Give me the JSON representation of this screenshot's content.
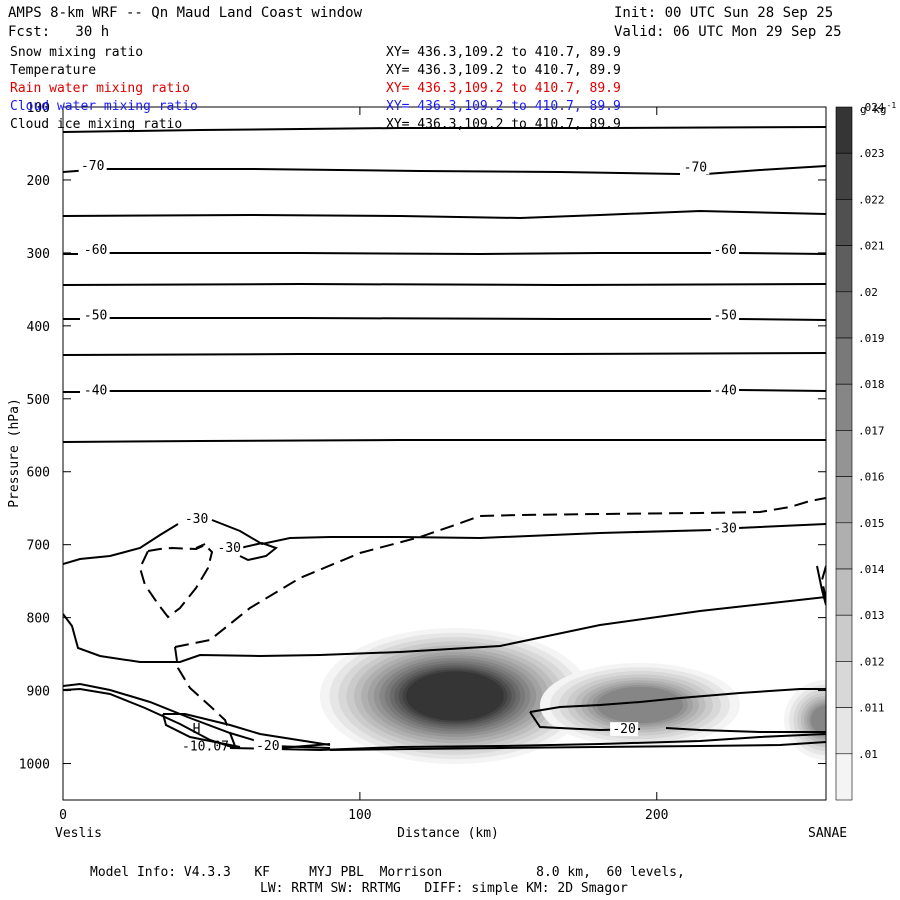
{
  "header": {
    "title": "AMPS 8-km WRF -- Qn Maud Land Coast window",
    "init": "Init: 00 UTC Sun 28 Sep 25",
    "forecast": "Fcst:   30 h",
    "valid": "Valid: 06 UTC Mon 29 Sep 25"
  },
  "legend": [
    {
      "name": "Snow mixing ratio",
      "xy": "XY= 436.3,109.2 to 410.7, 89.9",
      "color": "#000000"
    },
    {
      "name": "Temperature",
      "xy": "XY= 436.3,109.2 to 410.7, 89.9",
      "color": "#000000"
    },
    {
      "name": "Rain water mixing ratio",
      "xy": "XY= 436.3,109.2 to 410.7, 89.9",
      "color": "#e00000"
    },
    {
      "name": "Cloud water mixing ratio",
      "xy": "XY= 436.3,109.2 to 410.7, 89.9",
      "color": "#1a1aff"
    },
    {
      "name": "Cloud ice mixing ratio",
      "xy": "XY= 436.3,109.2 to 410.7, 89.9",
      "color": "#000000"
    }
  ],
  "footer": {
    "line1": "Model Info: V4.3.3   KF     MYJ PBL  Morrison            8.0 km,  60 levels,",
    "line2": "LW: RRTM SW: RRTMG   DIFF: simple KM: 2D Smagor"
  },
  "chart_data": {
    "type": "contour",
    "xlabel": "Distance (km)",
    "ylabel": "Pressure (hPa)",
    "xlim": [
      0,
      257
    ],
    "ylim": [
      1050,
      100
    ],
    "x_ticks": [
      0,
      100,
      200
    ],
    "y_ticks": [
      100,
      200,
      300,
      400,
      500,
      600,
      700,
      800,
      900,
      1000
    ],
    "x_endpoints": {
      "left": "Veslis",
      "right": "SANAE"
    },
    "colorbar": {
      "unit": "g kg",
      "unit_superscript": "-1",
      "levels": [
        0.01,
        0.011,
        0.012,
        0.013,
        0.014,
        0.015,
        0.016,
        0.017,
        0.018,
        0.019,
        0.02,
        0.021,
        0.022,
        0.023,
        0.024
      ],
      "labels": [
        ".01",
        ".011",
        ".012",
        ".013",
        ".014",
        ".015",
        ".016",
        ".017",
        ".018",
        ".019",
        ".02",
        ".021",
        ".022",
        ".023",
        ".024"
      ],
      "colors": [
        "#f4f4f4",
        "#e6e6e6",
        "#d8d8d8",
        "#cbcbcb",
        "#bdbdbd",
        "#afafaf",
        "#a2a2a2",
        "#949494",
        "#868686",
        "#797979",
        "#6b6b6b",
        "#5e5e5e",
        "#505050",
        "#424242",
        "#353535"
      ]
    },
    "temperature_labels": [
      {
        "text": "-70",
        "x": 10,
        "p": 185
      },
      {
        "text": "-70",
        "x": 213,
        "p": 187
      },
      {
        "text": "-60",
        "x": 11,
        "p": 300
      },
      {
        "text": "-60",
        "x": 223,
        "p": 300
      },
      {
        "text": "-50",
        "x": 11,
        "p": 390
      },
      {
        "text": "-50",
        "x": 223,
        "p": 390
      },
      {
        "text": "-40",
        "x": 11,
        "p": 493
      },
      {
        "text": "-40",
        "x": 223,
        "p": 493
      },
      {
        "text": "-30",
        "x": 45,
        "p": 669
      },
      {
        "text": "-30",
        "x": 56,
        "p": 709
      },
      {
        "text": "-30",
        "x": 223,
        "p": 682
      },
      {
        "text": "-20",
        "x": 189,
        "p": 957
      },
      {
        "text": "-20",
        "x": 69,
        "p": 980
      }
    ],
    "markers": [
      {
        "text": "H",
        "x": 45,
        "p": 958
      },
      {
        "text": "-10.07",
        "x": 48,
        "p": 982
      }
    ]
  }
}
